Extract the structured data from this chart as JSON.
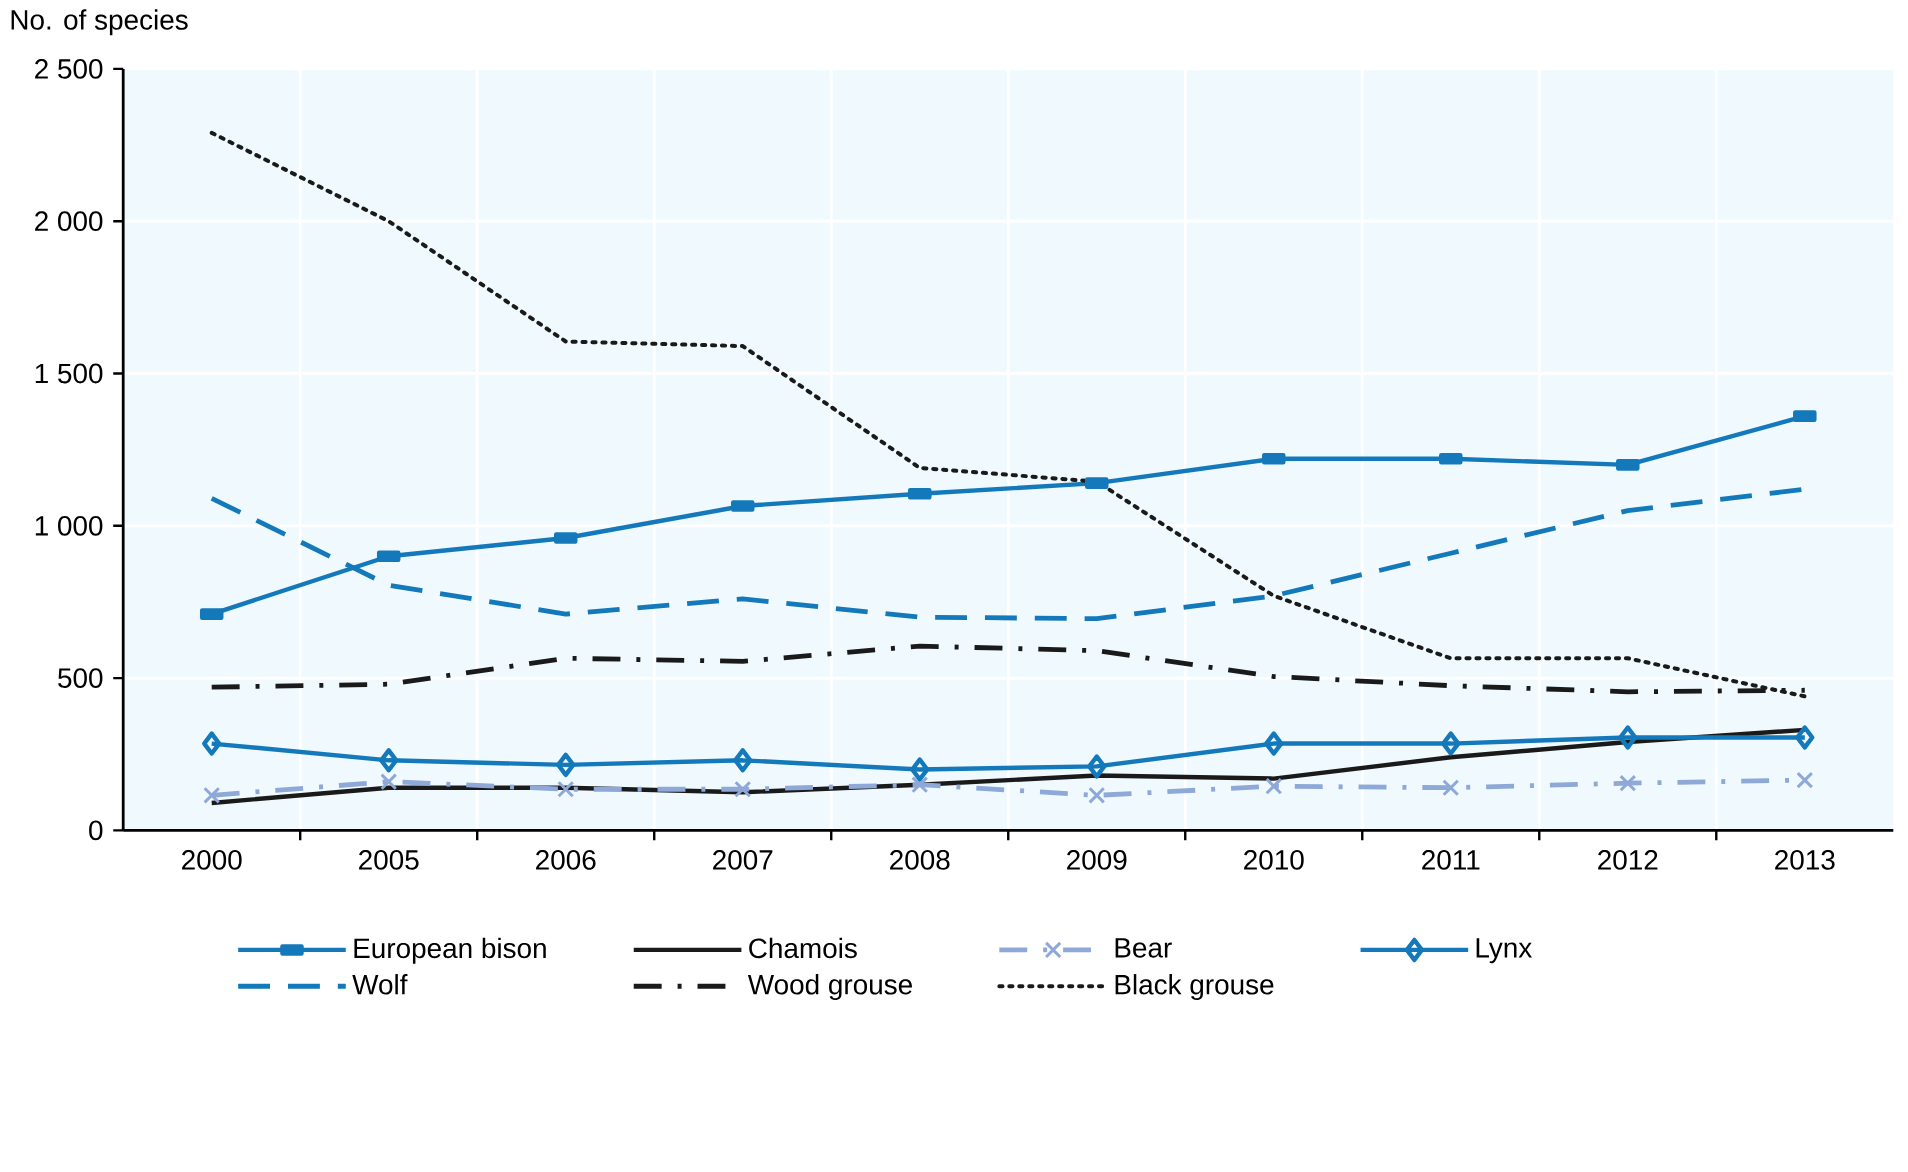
{
  "chart_data": {
    "type": "line",
    "ylabel": "No. of species",
    "categories": [
      "2000",
      "2005",
      "2006",
      "2007",
      "2008",
      "2009",
      "2010",
      "2011",
      "2012",
      "2013"
    ],
    "ylim": [
      0,
      2500
    ],
    "yticks": [
      0,
      500,
      {
        "value": 1000,
        "label": "1 000"
      },
      {
        "value": 1500,
        "label": "1 500"
      },
      {
        "value": 2000,
        "label": "2 000"
      },
      {
        "value": 2500,
        "label": "2 500"
      }
    ],
    "grid": true,
    "legend": "bottom",
    "series": [
      {
        "name": "European bison",
        "color": "#1479bb",
        "marker": "square",
        "line_style": "solid",
        "values": [
          710,
          900,
          960,
          1065,
          1105,
          1140,
          1220,
          1220,
          1200,
          1360
        ]
      },
      {
        "name": "Chamois",
        "color": "#1a1a1a",
        "marker": "none",
        "line_style": "solid",
        "values": [
          90,
          140,
          140,
          125,
          150,
          180,
          170,
          240,
          290,
          330
        ]
      },
      {
        "name": "Bear",
        "color": "#8ea8d8",
        "marker": "cross",
        "line_style": "dashdot",
        "values": [
          115,
          160,
          135,
          135,
          150,
          115,
          145,
          140,
          155,
          165
        ]
      },
      {
        "name": "Lynx",
        "color": "#1479bb",
        "marker": "diamond",
        "line_style": "solid",
        "values": [
          285,
          230,
          215,
          230,
          200,
          210,
          285,
          285,
          305,
          305
        ]
      },
      {
        "name": "Wolf",
        "color": "#1479bb",
        "marker": "none",
        "line_style": "dashed",
        "values": [
          1090,
          805,
          710,
          760,
          700,
          695,
          770,
          910,
          1050,
          1120
        ]
      },
      {
        "name": "Wood grouse",
        "color": "#1a1a1a",
        "marker": "none",
        "line_style": "dashdot",
        "values": [
          470,
          480,
          565,
          555,
          605,
          590,
          505,
          475,
          455,
          460
        ]
      },
      {
        "name": "Black grouse",
        "color": "#1a1a1a",
        "marker": "none",
        "line_style": "dotted",
        "values": [
          2290,
          2000,
          1605,
          1590,
          1190,
          1145,
          770,
          565,
          565,
          440
        ]
      }
    ]
  }
}
